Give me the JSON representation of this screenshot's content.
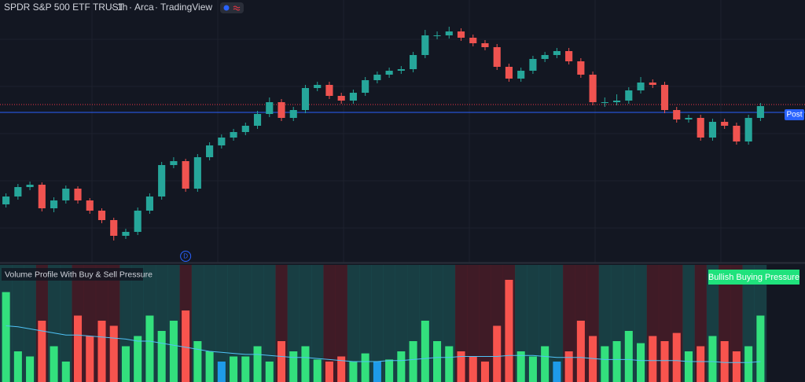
{
  "header": {
    "symbol": "SPDR S&P 500 ETF TRUST",
    "interval": "1h",
    "exchange": "Arca",
    "source": "TradingView"
  },
  "chart_data": [
    {
      "type": "candlestick",
      "ylim": [
        0,
        330
      ],
      "up_color": "#26a69a",
      "down_color": "#ef5350",
      "candles": [
        [
          70,
          84,
          66,
          80
        ],
        [
          80,
          96,
          76,
          92
        ],
        [
          92,
          99,
          88,
          95
        ],
        [
          95,
          98,
          61,
          65
        ],
        [
          65,
          79,
          60,
          75
        ],
        [
          75,
          94,
          71,
          90
        ],
        [
          90,
          93,
          71,
          75
        ],
        [
          75,
          78,
          58,
          62
        ],
        [
          62,
          65,
          46,
          50
        ],
        [
          50,
          53,
          24,
          30
        ],
        [
          30,
          39,
          26,
          35
        ],
        [
          35,
          66,
          31,
          62
        ],
        [
          62,
          84,
          58,
          80
        ],
        [
          80,
          124,
          76,
          120
        ],
        [
          120,
          130,
          116,
          125
        ],
        [
          125,
          128,
          86,
          90
        ],
        [
          90,
          134,
          86,
          130
        ],
        [
          130,
          149,
          126,
          145
        ],
        [
          145,
          159,
          141,
          155
        ],
        [
          155,
          166,
          151,
          162
        ],
        [
          162,
          174,
          158,
          170
        ],
        [
          170,
          189,
          166,
          185
        ],
        [
          185,
          206,
          181,
          200
        ],
        [
          200,
          204,
          176,
          180
        ],
        [
          180,
          194,
          176,
          190
        ],
        [
          190,
          222,
          186,
          218
        ],
        [
          218,
          226,
          214,
          222
        ],
        [
          222,
          226,
          204,
          208
        ],
        [
          208,
          212,
          198,
          202
        ],
        [
          202,
          216,
          198,
          212
        ],
        [
          212,
          232,
          208,
          228
        ],
        [
          228,
          239,
          224,
          235
        ],
        [
          235,
          244,
          231,
          240
        ],
        [
          240,
          246,
          236,
          242
        ],
        [
          242,
          264,
          238,
          260
        ],
        [
          260,
          292,
          256,
          285
        ],
        [
          285,
          290,
          280,
          285
        ],
        [
          285,
          296,
          281,
          290
        ],
        [
          290,
          294,
          278,
          282
        ],
        [
          282,
          286,
          271,
          275
        ],
        [
          275,
          279,
          266,
          270
        ],
        [
          270,
          274,
          241,
          245
        ],
        [
          245,
          249,
          226,
          230
        ],
        [
          230,
          244,
          226,
          240
        ],
        [
          240,
          259,
          236,
          255
        ],
        [
          255,
          264,
          251,
          260
        ],
        [
          260,
          269,
          256,
          265
        ],
        [
          265,
          269,
          248,
          252
        ],
        [
          252,
          256,
          231,
          235
        ],
        [
          235,
          239,
          196,
          200
        ],
        [
          200,
          206,
          194,
          200
        ],
        [
          200,
          210,
          196,
          202
        ],
        [
          202,
          219,
          198,
          215
        ],
        [
          215,
          232,
          211,
          225
        ],
        [
          225,
          229,
          218,
          222
        ],
        [
          222,
          226,
          186,
          190
        ],
        [
          190,
          194,
          174,
          178
        ],
        [
          178,
          184,
          174,
          180
        ],
        [
          180,
          184,
          151,
          155
        ],
        [
          155,
          179,
          151,
          175
        ],
        [
          175,
          179,
          166,
          170
        ],
        [
          170,
          174,
          146,
          150
        ],
        [
          150,
          184,
          146,
          180
        ],
        [
          180,
          199,
          176,
          195
        ]
      ],
      "reference_lines": [
        {
          "value": 197,
          "color": "#f23645",
          "style": "dotted"
        },
        {
          "value": 187,
          "color": "#2962ff",
          "style": "solid",
          "label": "Post"
        }
      ],
      "event_marker": {
        "label": "D",
        "index": 15
      }
    },
    {
      "type": "volume",
      "title": "Volume Profile With Buy & Sell Pressure",
      "badge": "Bullish Buying Pressure",
      "badge_color": "#1fe27c",
      "ylim": [
        0,
        100
      ],
      "values": [
        88,
        30,
        25,
        60,
        35,
        20,
        65,
        45,
        60,
        55,
        35,
        45,
        65,
        50,
        60,
        70,
        40,
        30,
        20,
        25,
        25,
        35,
        20,
        40,
        30,
        35,
        22,
        20,
        25,
        20,
        28,
        20,
        22,
        30,
        40,
        60,
        40,
        35,
        30,
        25,
        20,
        55,
        100,
        30,
        25,
        35,
        20,
        30,
        60,
        45,
        35,
        40,
        50,
        38,
        45,
        40,
        48,
        30,
        35,
        45,
        40,
        30,
        35,
        65
      ],
      "colors": [
        "#33e07d",
        "#33e07d",
        "#33e07d",
        "#f8544e",
        "#33e07d",
        "#33e07d",
        "#f8544e",
        "#f8544e",
        "#f8544e",
        "#f8544e",
        "#33e07d",
        "#33e07d",
        "#33e07d",
        "#33e07d",
        "#33e07d",
        "#f8544e",
        "#33e07d",
        "#33e07d",
        "#1e9be9",
        "#33e07d",
        "#33e07d",
        "#33e07d",
        "#33e07d",
        "#f8544e",
        "#33e07d",
        "#33e07d",
        "#33e07d",
        "#f8544e",
        "#f8544e",
        "#33e07d",
        "#33e07d",
        "#1e9be9",
        "#33e07d",
        "#33e07d",
        "#33e07d",
        "#33e07d",
        "#33e07d",
        "#33e07d",
        "#f8544e",
        "#f8544e",
        "#f8544e",
        "#f8544e",
        "#f8544e",
        "#33e07d",
        "#33e07d",
        "#33e07d",
        "#1e9be9",
        "#f8544e",
        "#f8544e",
        "#f8544e",
        "#33e07d",
        "#33e07d",
        "#33e07d",
        "#33e07d",
        "#f8544e",
        "#f8544e",
        "#f8544e",
        "#33e07d",
        "#f8544e",
        "#33e07d",
        "#f8544e",
        "#f8544e",
        "#33e07d",
        "#33e07d"
      ],
      "backgrounds": [
        "#26a69a",
        "#26a69a",
        "#26a69a",
        "#b22833",
        "#26a69a",
        "#26a69a",
        "#b22833",
        "#b22833",
        "#b22833",
        "#b22833",
        "#26a69a",
        "#26a69a",
        "#26a69a",
        "#26a69a",
        "#26a69a",
        "#b22833",
        "#26a69a",
        "#26a69a",
        "#26a69a",
        "#26a69a",
        "#26a69a",
        "#26a69a",
        "#26a69a",
        "#b22833",
        "#26a69a",
        "#26a69a",
        "#26a69a",
        "#b22833",
        "#b22833",
        "#26a69a",
        "#26a69a",
        "#26a69a",
        "#26a69a",
        "#26a69a",
        "#26a69a",
        "#26a69a",
        "#26a69a",
        "#26a69a",
        "#b22833",
        "#b22833",
        "#b22833",
        "#b22833",
        "#b22833",
        "#26a69a",
        "#26a69a",
        "#26a69a",
        "#26a69a",
        "#b22833",
        "#b22833",
        "#b22833",
        "#26a69a",
        "#26a69a",
        "#26a69a",
        "#26a69a",
        "#b22833",
        "#b22833",
        "#b22833",
        "#26a69a",
        "#b22833",
        "#26a69a",
        "#b22833",
        "#b22833",
        "#26a69a",
        "#26a69a"
      ],
      "background_opacity": 0.28,
      "ma": {
        "color": "#4fc3f7",
        "values": [
          55,
          54,
          52,
          50,
          48,
          46,
          46,
          45,
          44,
          43,
          42,
          40,
          40,
          38,
          36,
          34,
          32,
          30,
          29,
          28,
          27,
          27,
          26,
          25,
          24,
          24,
          23,
          22,
          21,
          20,
          20,
          20,
          21,
          21,
          22,
          23,
          24,
          24,
          25,
          25,
          25,
          25,
          26,
          26,
          26,
          25,
          24,
          24,
          24,
          23,
          22,
          22,
          22,
          21,
          21,
          21,
          21,
          20,
          20,
          20,
          19,
          19,
          19,
          20
        ]
      }
    }
  ]
}
